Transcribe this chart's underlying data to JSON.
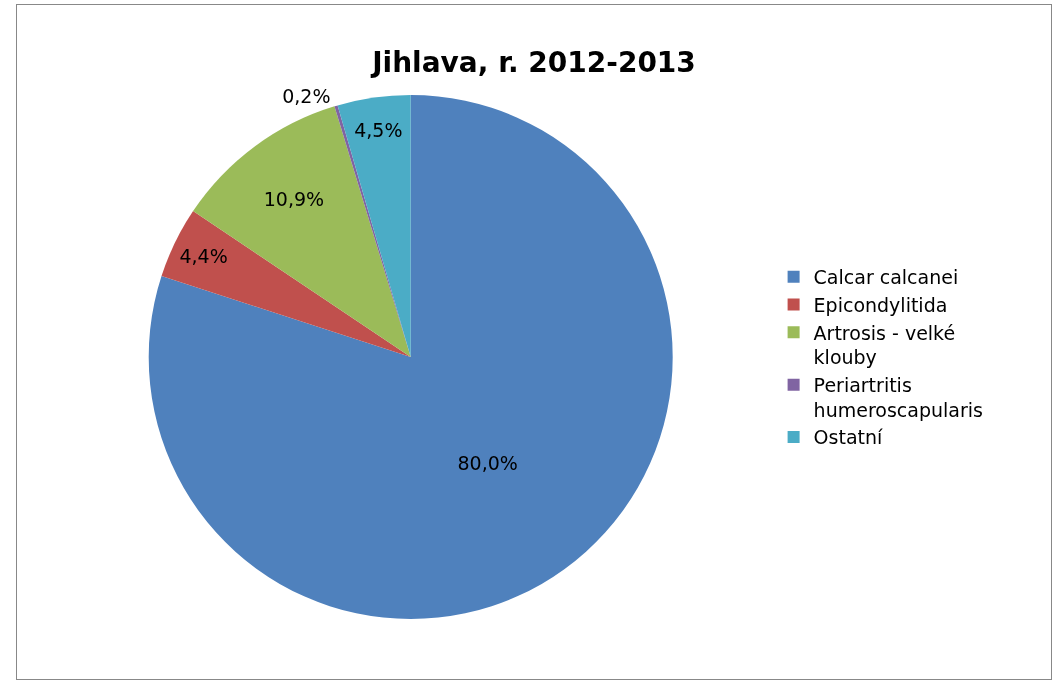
{
  "chart_data": {
    "type": "pie",
    "title": "Jihlava, r. 2012-2013",
    "categories": [
      "Calcar calcanei",
      "Epicondylitida",
      "Artrosis - velké klouby",
      "Periartritis humeroscapularis",
      "Ostatní"
    ],
    "values": [
      80.0,
      4.4,
      10.9,
      0.2,
      4.5
    ],
    "value_labels": [
      "80,0%",
      "4,4%",
      "10,9%",
      "0,2%",
      "4,5%"
    ],
    "colors": [
      "#4f81bd",
      "#c0504d",
      "#9bbb59",
      "#8064a2",
      "#4bacc6"
    ],
    "legend": "right"
  }
}
